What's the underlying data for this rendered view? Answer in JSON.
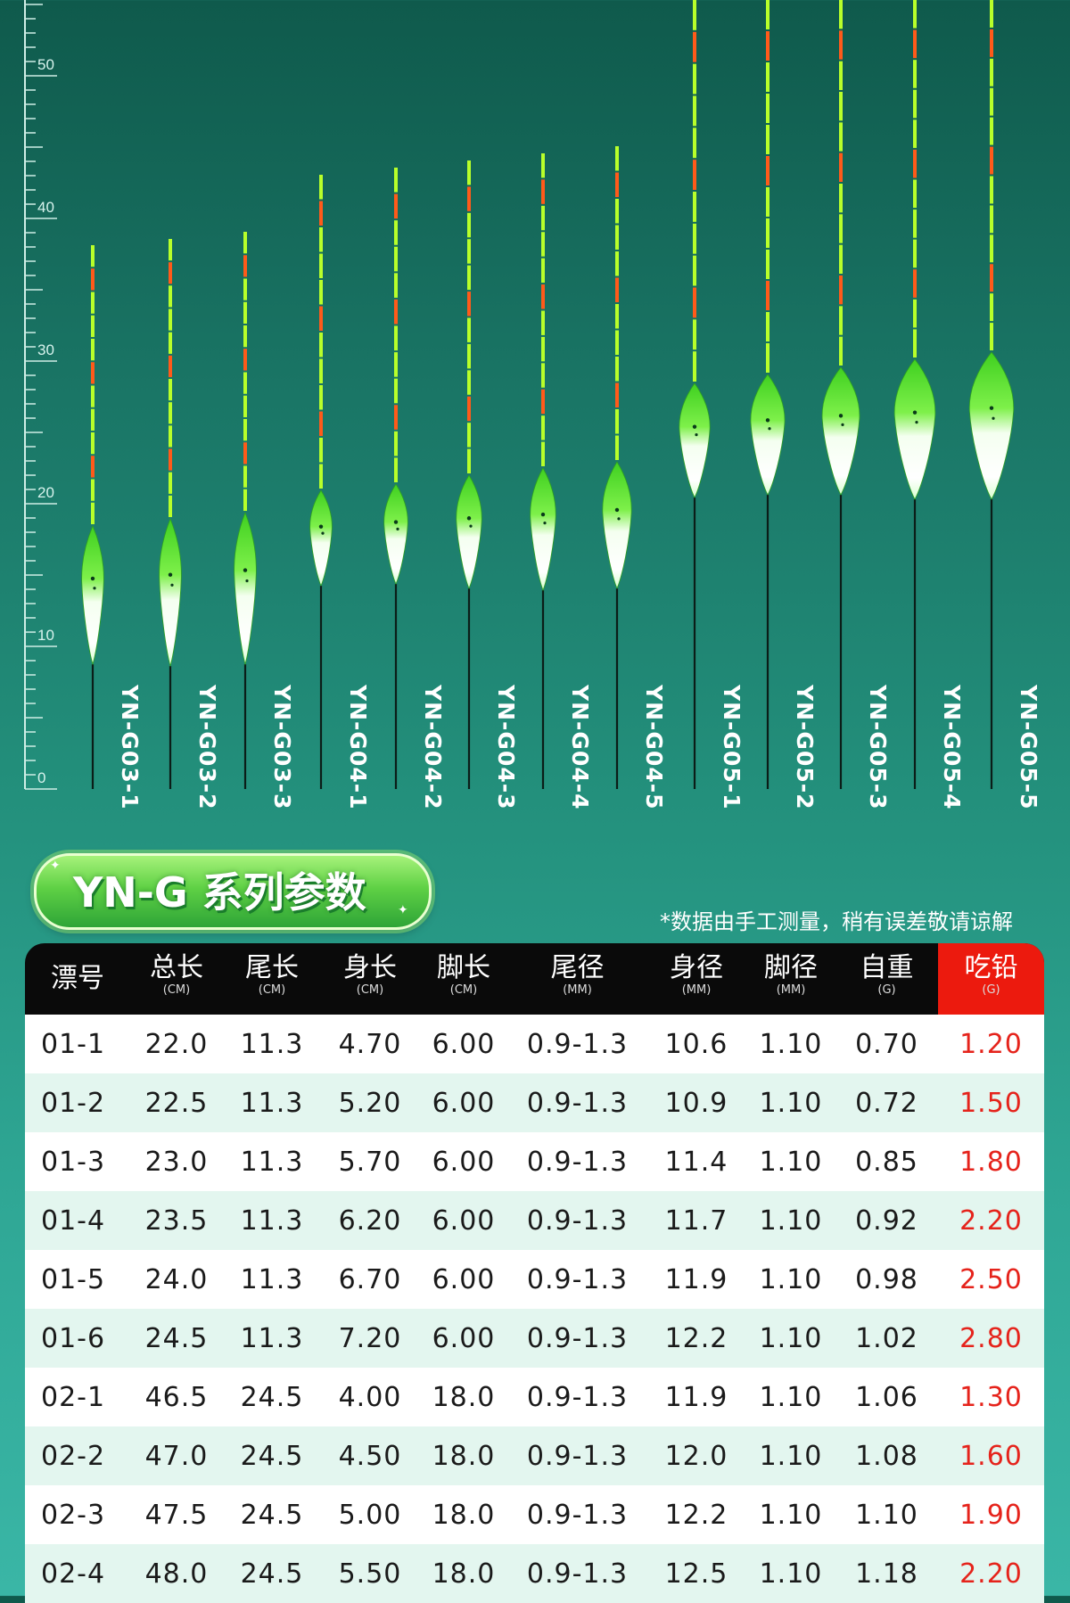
{
  "ruler": {
    "labels": [
      "50",
      "40",
      "30",
      "20",
      "10",
      "0"
    ]
  },
  "floats": [
    {
      "label": "YN-G03-1"
    },
    {
      "label": "YN-G03-2"
    },
    {
      "label": "YN-G03-3"
    },
    {
      "label": "YN-G04-1"
    },
    {
      "label": "YN-G04-2"
    },
    {
      "label": "YN-G04-3"
    },
    {
      "label": "YN-G04-4"
    },
    {
      "label": "YN-G04-5"
    },
    {
      "label": "YN-G05-1"
    },
    {
      "label": "YN-G05-2"
    },
    {
      "label": "YN-G05-3"
    },
    {
      "label": "YN-G05-4"
    },
    {
      "label": "YN-G05-5"
    }
  ],
  "colors": {
    "tip_green": "#b8ff2a",
    "tip_orange": "#ff5a1a",
    "body_green": "#5ee02c",
    "accent_red": "#e5231b",
    "header_black": "#0a0a0a"
  },
  "section": {
    "title": "YN-G 系列参数",
    "note": "*数据由手工测量，稍有误差敬请谅解"
  },
  "table": {
    "headers": [
      {
        "label": "漂号",
        "unit": ""
      },
      {
        "label": "总长",
        "unit": "(CM)"
      },
      {
        "label": "尾长",
        "unit": "(CM)"
      },
      {
        "label": "身长",
        "unit": "(CM)"
      },
      {
        "label": "脚长",
        "unit": "(CM)"
      },
      {
        "label": "尾径",
        "unit": "(MM)"
      },
      {
        "label": "身径",
        "unit": "(MM)"
      },
      {
        "label": "脚径",
        "unit": "(MM)"
      },
      {
        "label": "自重",
        "unit": "(G)"
      },
      {
        "label": "吃铅",
        "unit": "(G)"
      }
    ],
    "rows": [
      [
        "01-1",
        "22.0",
        "11.3",
        "4.70",
        "6.00",
        "0.9-1.3",
        "10.6",
        "1.10",
        "0.70",
        "1.20"
      ],
      [
        "01-2",
        "22.5",
        "11.3",
        "5.20",
        "6.00",
        "0.9-1.3",
        "10.9",
        "1.10",
        "0.72",
        "1.50"
      ],
      [
        "01-3",
        "23.0",
        "11.3",
        "5.70",
        "6.00",
        "0.9-1.3",
        "11.4",
        "1.10",
        "0.85",
        "1.80"
      ],
      [
        "01-4",
        "23.5",
        "11.3",
        "6.20",
        "6.00",
        "0.9-1.3",
        "11.7",
        "1.10",
        "0.92",
        "2.20"
      ],
      [
        "01-5",
        "24.0",
        "11.3",
        "6.70",
        "6.00",
        "0.9-1.3",
        "11.9",
        "1.10",
        "0.98",
        "2.50"
      ],
      [
        "01-6",
        "24.5",
        "11.3",
        "7.20",
        "6.00",
        "0.9-1.3",
        "12.2",
        "1.10",
        "1.02",
        "2.80"
      ],
      [
        "02-1",
        "46.5",
        "24.5",
        "4.00",
        "18.0",
        "0.9-1.3",
        "11.9",
        "1.10",
        "1.06",
        "1.30"
      ],
      [
        "02-2",
        "47.0",
        "24.5",
        "4.50",
        "18.0",
        "0.9-1.3",
        "12.0",
        "1.10",
        "1.08",
        "1.60"
      ],
      [
        "02-3",
        "47.5",
        "24.5",
        "5.00",
        "18.0",
        "0.9-1.3",
        "12.2",
        "1.10",
        "1.10",
        "1.90"
      ],
      [
        "02-4",
        "48.0",
        "24.5",
        "5.50",
        "18.0",
        "0.9-1.3",
        "12.5",
        "1.10",
        "1.18",
        "2.20"
      ]
    ]
  }
}
